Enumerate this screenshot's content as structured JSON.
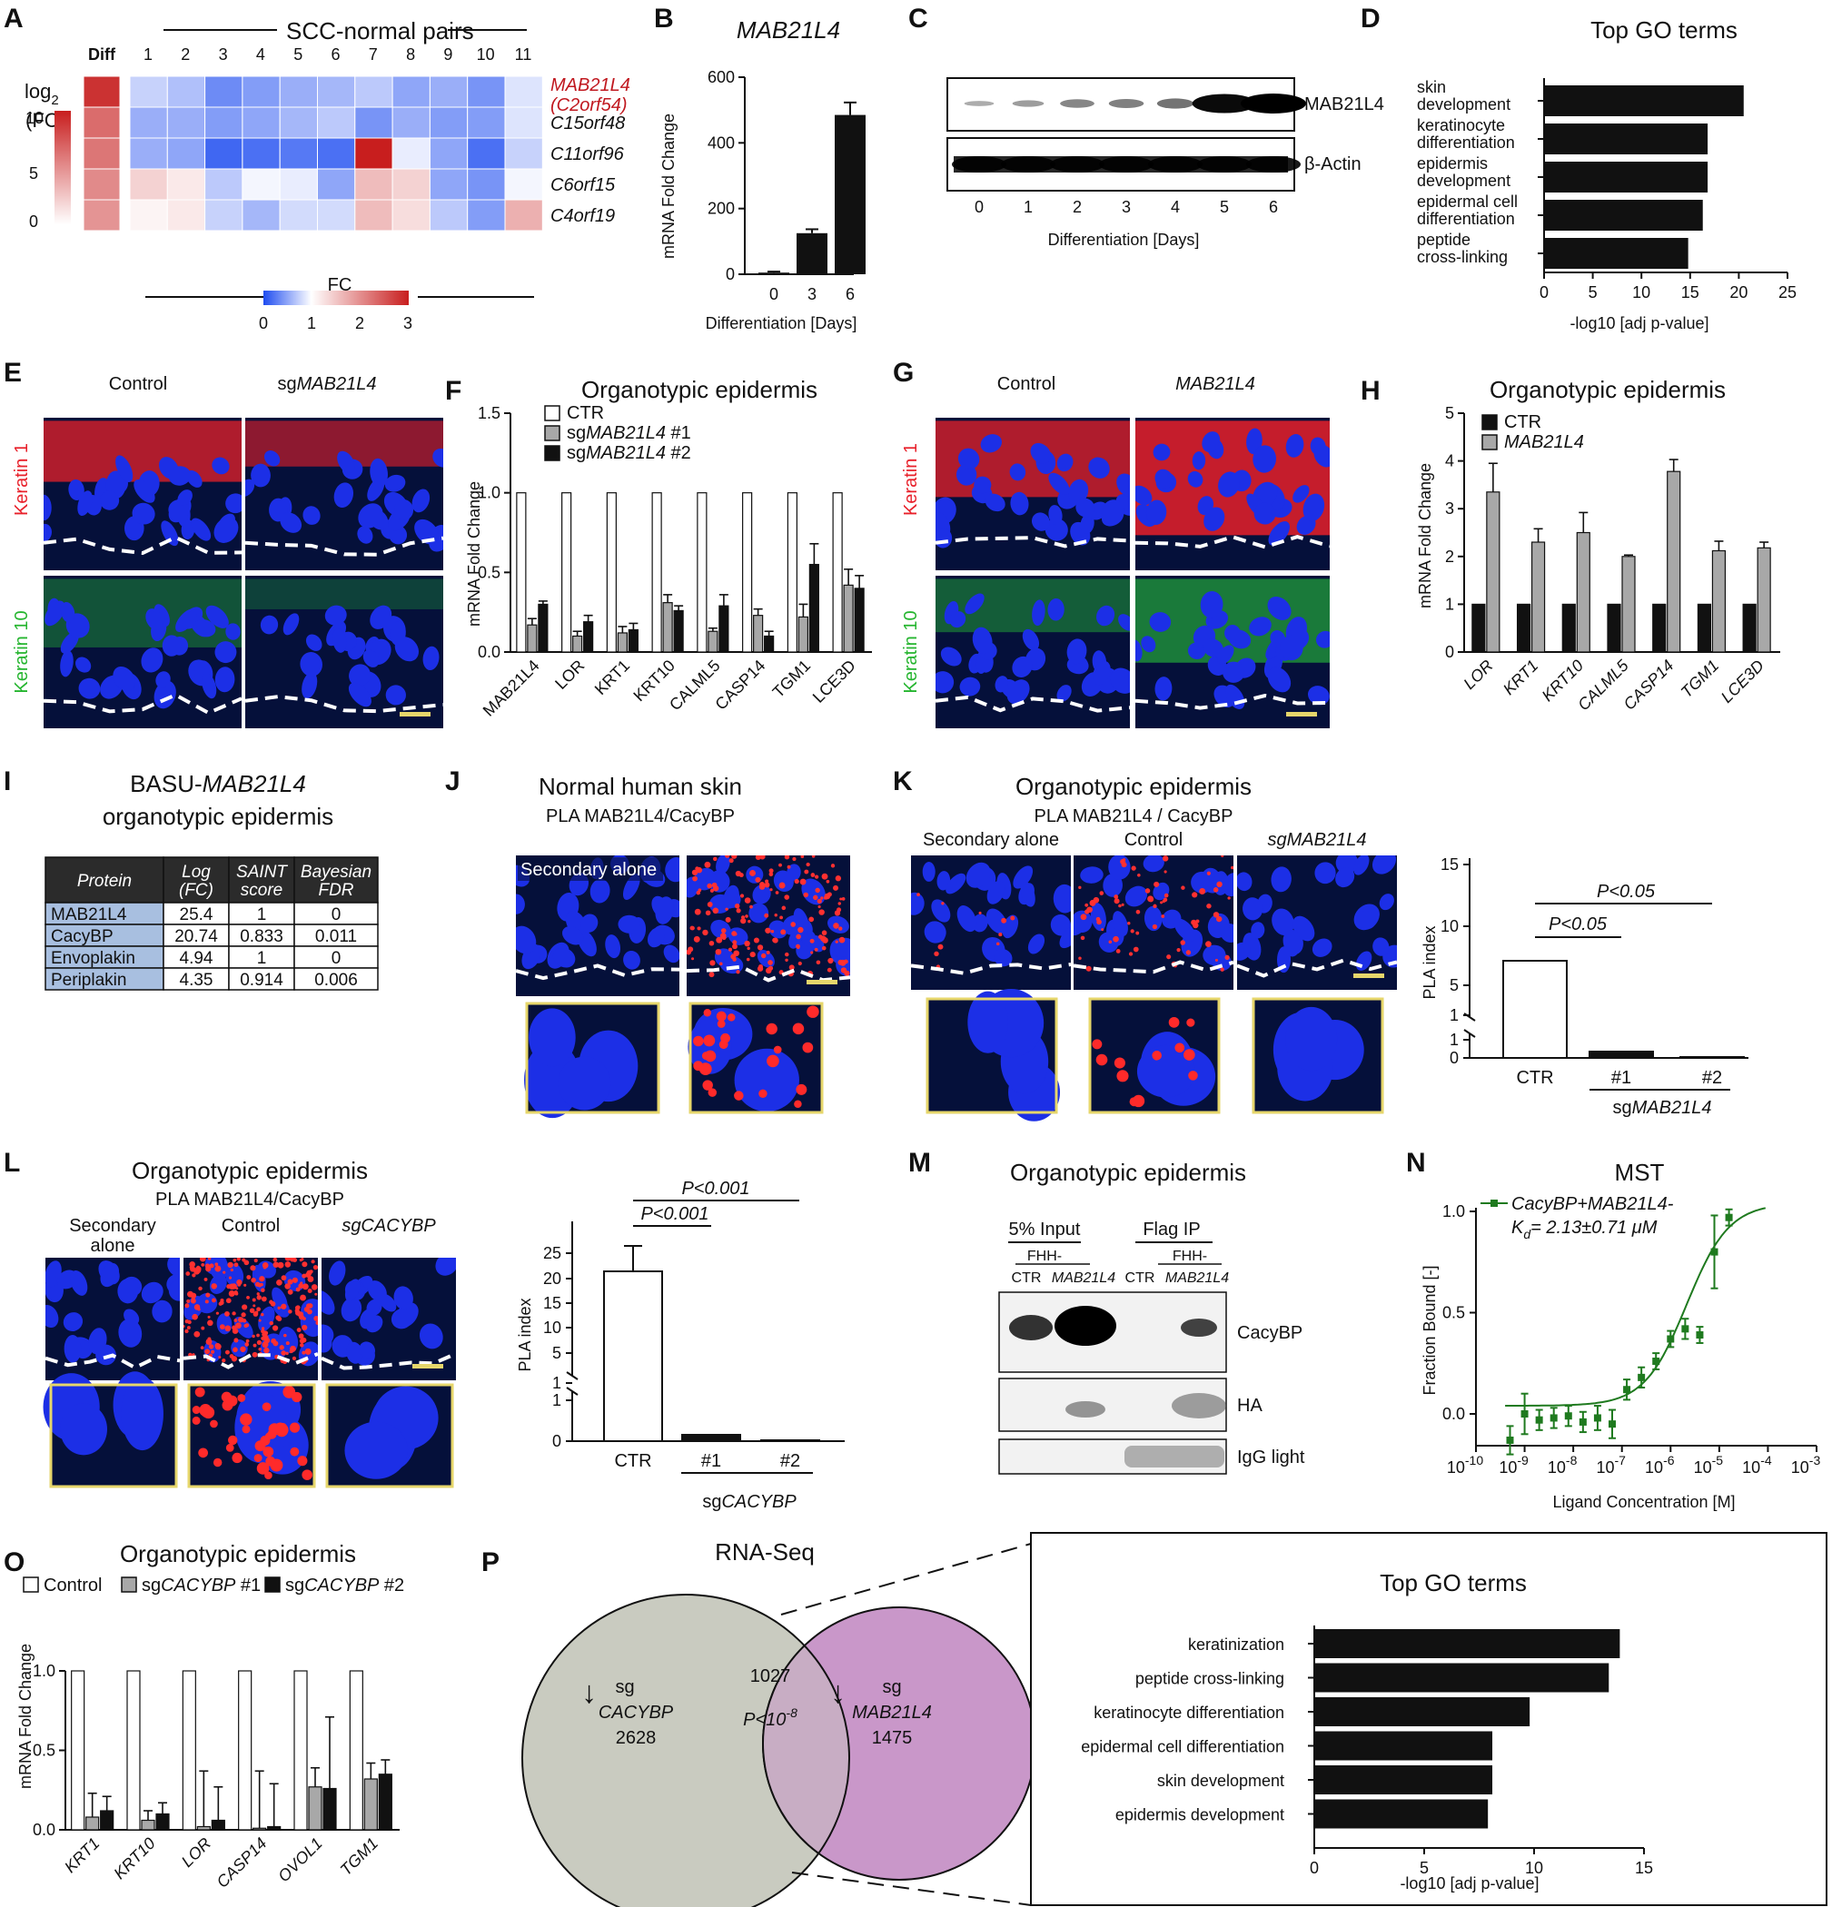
{
  "panel_labels": [
    "A",
    "B",
    "C",
    "D",
    "E",
    "F",
    "G",
    "H",
    "I",
    "J",
    "K",
    "L",
    "M",
    "N",
    "O",
    "P"
  ],
  "colors": {
    "nucleus": "#1c2fe6",
    "red_stain": "#e8202a",
    "green_stain": "#2bd23a",
    "inset_border": "#e6d66b",
    "venn_left": "#c9cbc0",
    "venn_right": "#c997c9",
    "mst_green": "#1f7a1f",
    "highlight_red": "#c0181f"
  },
  "A": {
    "header": "SCC-normal pairs",
    "diff_label": "Diff",
    "scale_title_1": "log",
    "scale_sub": "2",
    "scale_title_2": "(FC)",
    "scale_ticks": [
      "10",
      "5",
      "0"
    ],
    "cols": [
      "1",
      "2",
      "3",
      "4",
      "5",
      "6",
      "7",
      "8",
      "9",
      "10",
      "11"
    ],
    "genes": [
      "MAB21L4",
      "C15orf48",
      "C11orf96",
      "C6orf15",
      "C4orf19"
    ],
    "gene_alias": "(C2orf54)",
    "diff_values": [
      10.5,
      7.5,
      7.0,
      6.0,
      5.5
    ],
    "fc": [
      [
        0.75,
        0.65,
        0.35,
        0.45,
        0.55,
        0.6,
        0.7,
        0.5,
        0.55,
        0.4,
        0.85
      ],
      [
        0.55,
        0.55,
        0.45,
        0.5,
        0.6,
        0.7,
        0.4,
        0.55,
        0.45,
        0.45,
        0.85
      ],
      [
        0.55,
        0.5,
        0.15,
        0.2,
        0.25,
        0.2,
        3.0,
        0.9,
        0.5,
        0.2,
        0.75
      ],
      [
        1.4,
        1.2,
        0.7,
        0.95,
        0.9,
        0.5,
        1.6,
        1.4,
        0.5,
        0.4,
        0.95
      ],
      [
        1.1,
        1.2,
        0.75,
        0.6,
        0.8,
        0.8,
        1.6,
        1.3,
        0.7,
        0.45,
        1.7
      ]
    ],
    "fc_label": "FC",
    "fc_ticks": [
      "0",
      "1",
      "2",
      "3"
    ]
  },
  "B": {
    "title": "MAB21L4",
    "ylabel": "mRNA Fold Change",
    "xlabel": "Differentiation [Days]",
    "chart_data": {
      "type": "bar",
      "categories": [
        "0",
        "3",
        "6"
      ],
      "values": [
        5,
        125,
        485
      ],
      "errors": [
        3,
        12,
        38
      ],
      "ylim": [
        0,
        600
      ],
      "yticks": [
        0,
        200,
        400,
        600
      ]
    }
  },
  "C": {
    "bands": [
      "MAB21L4",
      "β-Actin"
    ],
    "lanes": [
      "0",
      "1",
      "2",
      "3",
      "4",
      "5",
      "6"
    ],
    "xlabel": "Differentiation [Days]",
    "mab_intensity": [
      0.1,
      0.18,
      0.3,
      0.33,
      0.4,
      0.95,
      1.0
    ]
  },
  "D": {
    "title": "Top GO terms",
    "xlabel": "-log10 [adj p-value]",
    "chart_data": {
      "type": "bar",
      "categories": [
        [
          "skin",
          "development"
        ],
        [
          "keratinocyte",
          "differentiation"
        ],
        [
          "epidermis",
          "development"
        ],
        [
          "epidermal cell",
          "differentiation"
        ],
        [
          "peptide",
          "cross-linking"
        ]
      ],
      "values": [
        20.5,
        16.8,
        16.8,
        16.3,
        14.8
      ],
      "xlim": [
        0,
        25
      ],
      "xticks": [
        0,
        5,
        10,
        15,
        20,
        25
      ]
    }
  },
  "E": {
    "col1": "Control",
    "col2_pre": "sg",
    "col2": "MAB21L4",
    "row1": "Keratin 1",
    "row2": "Keratin 10"
  },
  "F": {
    "title": "Organotypic epidermis",
    "ylabel": "mRNA Fold Change",
    "legend": [
      {
        "label": "CTR",
        "pre": "",
        "it": ""
      },
      {
        "pre": "sg",
        "it": "MAB21L4",
        "label": " #1"
      },
      {
        "pre": "sg",
        "it": "MAB21L4",
        "label": " #2"
      }
    ],
    "chart_data": {
      "type": "bar",
      "categories": [
        "MAB21L4",
        "LOR",
        "KRT1",
        "KRT10",
        "CALML5",
        "CASP14",
        "TGM1",
        "LCE3D"
      ],
      "series": [
        {
          "name": "CTR",
          "values": [
            1,
            1,
            1,
            1,
            1,
            1,
            1,
            1
          ]
        },
        {
          "name": "sgMAB21L4 #1",
          "values": [
            0.17,
            0.1,
            0.12,
            0.31,
            0.13,
            0.23,
            0.22,
            0.42
          ]
        },
        {
          "name": "sgMAB21L4 #2",
          "values": [
            0.3,
            0.19,
            0.14,
            0.26,
            0.29,
            0.1,
            0.55,
            0.4
          ]
        }
      ],
      "errors": [
        [
          0,
          0,
          0,
          0,
          0,
          0,
          0,
          0
        ],
        [
          0.04,
          0.03,
          0.04,
          0.05,
          0.02,
          0.04,
          0.08,
          0.1
        ],
        [
          0.02,
          0.04,
          0.04,
          0.03,
          0.07,
          0.03,
          0.13,
          0.08
        ]
      ],
      "ylim": [
        0,
        1.5
      ],
      "yticks": [
        "0.0",
        "0.5",
        "1.0",
        "1.5"
      ]
    }
  },
  "G": {
    "col1": "Control",
    "col2": "MAB21L4",
    "row1": "Keratin 1",
    "row2": "Keratin 10"
  },
  "H": {
    "title": "Organotypic epidermis",
    "ylabel": "mRNA Fold Change",
    "legend": [
      "CTR",
      "MAB21L4"
    ],
    "chart_data": {
      "type": "bar",
      "categories": [
        "LOR",
        "KRT1",
        "KRT10",
        "CALML5",
        "CASP14",
        "TGM1",
        "LCE3D"
      ],
      "series": [
        {
          "name": "CTR",
          "values": [
            1,
            1,
            1,
            1,
            1,
            1,
            1
          ]
        },
        {
          "name": "MAB21L4",
          "values": [
            3.35,
            2.3,
            2.5,
            2.0,
            3.78,
            2.12,
            2.18
          ]
        }
      ],
      "errors": [
        [
          0,
          0,
          0,
          0,
          0,
          0,
          0
        ],
        [
          0.6,
          0.28,
          0.42,
          0.03,
          0.25,
          0.2,
          0.12
        ]
      ],
      "ylim": [
        0,
        5
      ],
      "yticks": [
        "0",
        "1",
        "2",
        "3",
        "4",
        "5"
      ]
    }
  },
  "I": {
    "title_pre": "BASU-",
    "title_it": "MAB21L4",
    "title2": "organotypic epidermis",
    "headers": [
      [
        "Protein"
      ],
      [
        "Log",
        "(FC)"
      ],
      [
        "SAINT",
        "score"
      ],
      [
        "Bayesian",
        "FDR"
      ]
    ],
    "rows": [
      [
        "MAB21L4",
        "25.4",
        "1",
        "0"
      ],
      [
        "CacyBP",
        "20.74",
        "0.833",
        "0.011"
      ],
      [
        "Envoplakin",
        "4.94",
        "1",
        "0"
      ],
      [
        "Periplakin",
        "4.35",
        "0.914",
        "0.006"
      ]
    ]
  },
  "J": {
    "title": "Normal human skin",
    "subtitle": "PLA MAB21L4/CacyBP",
    "img_label": "Secondary alone"
  },
  "K": {
    "title": "Organotypic epidermis",
    "subtitle": "PLA MAB21L4 / CacyBP",
    "cols": [
      "Secondary alone",
      "Control",
      "sgMAB21L4"
    ],
    "ylabel": "PLA index",
    "xlabel_pre": "sg",
    "xlabel_it": "MAB21L4",
    "chart_data": {
      "type": "bar",
      "categories": [
        "CTR",
        "#1",
        "#2"
      ],
      "values": [
        6.5,
        0.3,
        0.05
      ],
      "yticks": [
        "0",
        "1",
        "1",
        "5",
        "10",
        "15"
      ],
      "p1": "P<0.05",
      "p2": "P<0.05"
    }
  },
  "L": {
    "title": "Organotypic epidermis",
    "subtitle": "PLA MAB21L4/CacyBP",
    "cols": [
      [
        "Secondary",
        "alone"
      ],
      [
        "Control"
      ],
      [
        "sgCACYBP"
      ]
    ],
    "ylabel": "PLA index",
    "xlabel_pre": "sg",
    "xlabel_it": "CACYBP",
    "chart_data": {
      "type": "bar",
      "categories": [
        "CTR",
        "#1",
        "#2"
      ],
      "values": [
        19,
        0.25,
        0.05
      ],
      "errors": [
        5.2,
        0.12,
        0.02
      ],
      "yticks": [
        "0",
        "1",
        "1",
        "5",
        "10",
        "15",
        "20",
        "25"
      ],
      "p1": "P<0.001",
      "p2": "P<0.001"
    }
  },
  "M": {
    "title": "Organotypic epidermis",
    "group1": "5% Input",
    "group2": "Flag IP",
    "fhh": "FHH-",
    "lanes": [
      "CTR",
      "MAB21L4",
      "CTR",
      "MAB21L4"
    ],
    "bands": [
      "CacyBP",
      "HA",
      "IgG light"
    ]
  },
  "N": {
    "title": "MST",
    "legend1": "CacyBP+MAB21L4-",
    "legend2_pre": "K",
    "legend2_sub": "d",
    "legend2": "= 2.13±0.71 μM",
    "ylabel": "Fraction Bound [-]",
    "xlabel": "Ligand Concentration [M]",
    "chart_data": {
      "type": "scatter",
      "x_log10": [
        -9.3,
        -9.0,
        -8.7,
        -8.4,
        -8.1,
        -7.8,
        -7.5,
        -7.2,
        -6.9,
        -6.6,
        -6.3,
        -6.0,
        -5.7,
        -5.4,
        -5.1,
        -4.8
      ],
      "y": [
        -0.13,
        0.0,
        -0.03,
        -0.02,
        -0.01,
        -0.04,
        -0.02,
        -0.05,
        0.12,
        0.18,
        0.26,
        0.37,
        0.42,
        0.39,
        0.8,
        0.97
      ],
      "err": [
        0.07,
        0.1,
        0.05,
        0.05,
        0.05,
        0.05,
        0.06,
        0.07,
        0.05,
        0.05,
        0.04,
        0.04,
        0.05,
        0.04,
        0.18,
        0.04
      ],
      "xticks": [
        "-10",
        "-9",
        "-8",
        "-7",
        "-6",
        "-5",
        "-4",
        "-3"
      ],
      "yticks": [
        "0.0",
        "0.5",
        "1.0"
      ]
    }
  },
  "O": {
    "title": "Organotypic epidermis",
    "ylabel": "mRNA Fold Change",
    "legend": [
      {
        "pre": "",
        "it": "",
        "post": "Control"
      },
      {
        "pre": "sg",
        "it": "CACYBP",
        "post": " #1"
      },
      {
        "pre": "sg",
        "it": "CACYBP",
        "post": " #2"
      }
    ],
    "chart_data": {
      "type": "bar",
      "categories": [
        "KRT1",
        "KRT10",
        "LOR",
        "CASP14",
        "OVOL1",
        "TGM1"
      ],
      "series": [
        {
          "name": "Control",
          "values": [
            1,
            1,
            1,
            1,
            1,
            1
          ]
        },
        {
          "name": "sgCACYBP #1",
          "values": [
            0.08,
            0.06,
            0.02,
            0.01,
            0.27,
            0.32
          ]
        },
        {
          "name": "sgCACYBP #2",
          "values": [
            0.12,
            0.1,
            0.06,
            0.02,
            0.26,
            0.35
          ]
        }
      ],
      "errors": [
        [
          0,
          0,
          0,
          0,
          0,
          0
        ],
        [
          0.15,
          0.06,
          0.35,
          0.36,
          0.12,
          0.1
        ],
        [
          0.09,
          0.07,
          0.21,
          0.27,
          0.45,
          0.09
        ]
      ],
      "ylim": [
        0,
        1.0
      ],
      "yticks": [
        "0.0",
        "0.5",
        "1.0"
      ]
    }
  },
  "P": {
    "title": "RNA-Seq",
    "left_sg": "sg",
    "left_gene": "CACYBP",
    "left_count": "2628",
    "mid_count": "1027",
    "mid_p_pre": "P<10",
    "mid_p_exp": "-8",
    "right_sg": "sg",
    "right_gene": "MAB21L4",
    "right_count": "1475",
    "go_title": "Top GO terms",
    "xlabel": "-log10 [adj p-value]",
    "chart_data": {
      "type": "bar",
      "categories": [
        "keratinization",
        "peptide cross-linking",
        "keratinocyte differentiation",
        "epidermal cell differentiation",
        "skin development",
        "epidermis development"
      ],
      "values": [
        13.9,
        13.4,
        9.8,
        8.1,
        8.1,
        7.9
      ],
      "xlim": [
        0,
        15
      ],
      "xticks": [
        0,
        5,
        10,
        15
      ]
    }
  }
}
